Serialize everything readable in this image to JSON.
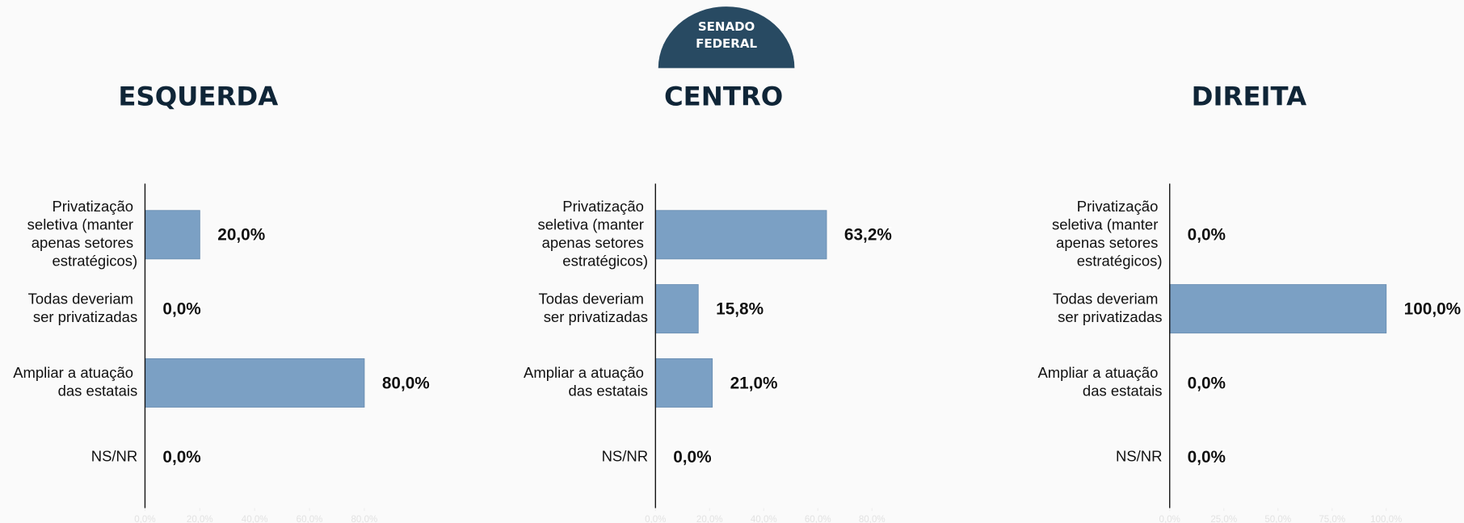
{
  "header": {
    "line1": "SENADO",
    "line2": "FEDERAL"
  },
  "chart_data": [
    {
      "type": "bar",
      "orientation": "horizontal",
      "title": "ESQUERDA",
      "color": "#7ba0c4",
      "categories": [
        "Privatização seletiva (manter apenas setores estratégicos)",
        "Todas deveriam ser privatizadas",
        "Ampliar a atuação das estatais",
        "NS/NR"
      ],
      "values": [
        20,
        0,
        80,
        0
      ],
      "value_labels": [
        "20,0%",
        "0,0%",
        "80,0%",
        "0,0%"
      ],
      "xlim": [
        0,
        80
      ],
      "xticks": [
        {
          "value": 0,
          "label": "0,0%"
        },
        {
          "value": 20,
          "label": "20,0%"
        },
        {
          "value": 40,
          "label": "40,0%"
        },
        {
          "value": 60,
          "label": "60,0%"
        },
        {
          "value": 80,
          "label": "80,0%"
        }
      ]
    },
    {
      "type": "bar",
      "orientation": "horizontal",
      "title": "CENTRO",
      "color": "#7ba0c4",
      "categories": [
        "Privatização seletiva (manter apenas setores estratégicos)",
        "Todas deveriam ser privatizadas",
        "Ampliar a atuação das estatais",
        "NS/NR"
      ],
      "values": [
        63.2,
        15.8,
        21.0,
        0
      ],
      "value_labels": [
        "63,2%",
        "15,8%",
        "21,0%",
        "0,0%"
      ],
      "xlim": [
        0,
        80
      ],
      "xticks": [
        {
          "value": 0,
          "label": "0,0%"
        },
        {
          "value": 20,
          "label": "20,0%"
        },
        {
          "value": 40,
          "label": "40,0%"
        },
        {
          "value": 60,
          "label": "60,0%"
        },
        {
          "value": 80,
          "label": "80,0%"
        }
      ]
    },
    {
      "type": "bar",
      "orientation": "horizontal",
      "title": "DIREITA",
      "color": "#7ba0c4",
      "categories": [
        "Privatização seletiva (manter apenas setores estratégicos)",
        "Todas deveriam ser privatizadas",
        "Ampliar a atuação das estatais",
        "NS/NR"
      ],
      "values": [
        0,
        100,
        0,
        0
      ],
      "value_labels": [
        "0,0%",
        "100,0%",
        "0,0%",
        "0,0%"
      ],
      "xlim": [
        0,
        100
      ],
      "xticks": [
        {
          "value": 0,
          "label": "0,0%"
        },
        {
          "value": 25,
          "label": "25,0%"
        },
        {
          "value": 50,
          "label": "50,0%"
        },
        {
          "value": 75,
          "label": "75,0%"
        },
        {
          "value": 100,
          "label": "100,0%"
        }
      ]
    }
  ]
}
